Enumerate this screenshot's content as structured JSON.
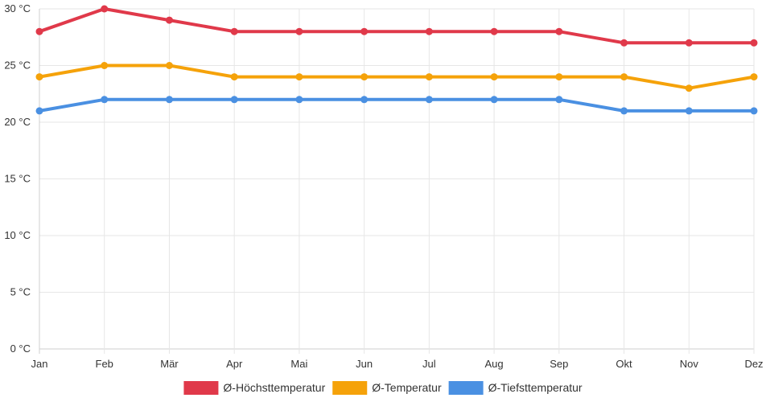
{
  "chart_data": {
    "type": "line",
    "title": "",
    "xlabel": "",
    "ylabel": "",
    "unit": " °C",
    "categories": [
      "Jan",
      "Feb",
      "Mär",
      "Apr",
      "Mai",
      "Jun",
      "Jul",
      "Aug",
      "Sep",
      "Okt",
      "Nov",
      "Dez"
    ],
    "ylim": [
      0,
      30
    ],
    "yticks": [
      0,
      5,
      10,
      15,
      20,
      25,
      30
    ],
    "ytick_labels": [
      "0 °C",
      "5 °C",
      "10 °C",
      "15 °C",
      "20 °C",
      "25 °C",
      "30 °C"
    ],
    "grid": true,
    "legend_position": "bottom",
    "series": [
      {
        "name": "Ø-Höchsttemperatur",
        "color": "#e0394a",
        "values": [
          28,
          30,
          29,
          28,
          28,
          28,
          28,
          28,
          28,
          27,
          27,
          27
        ]
      },
      {
        "name": "Ø-Temperatur",
        "color": "#f5a20a",
        "values": [
          24,
          25,
          25,
          24,
          24,
          24,
          24,
          24,
          24,
          24,
          23,
          24
        ]
      },
      {
        "name": "Ø-Tiefsttemperatur",
        "color": "#4a90e2",
        "values": [
          21,
          22,
          22,
          22,
          22,
          22,
          22,
          22,
          22,
          21,
          21,
          21
        ]
      }
    ]
  }
}
